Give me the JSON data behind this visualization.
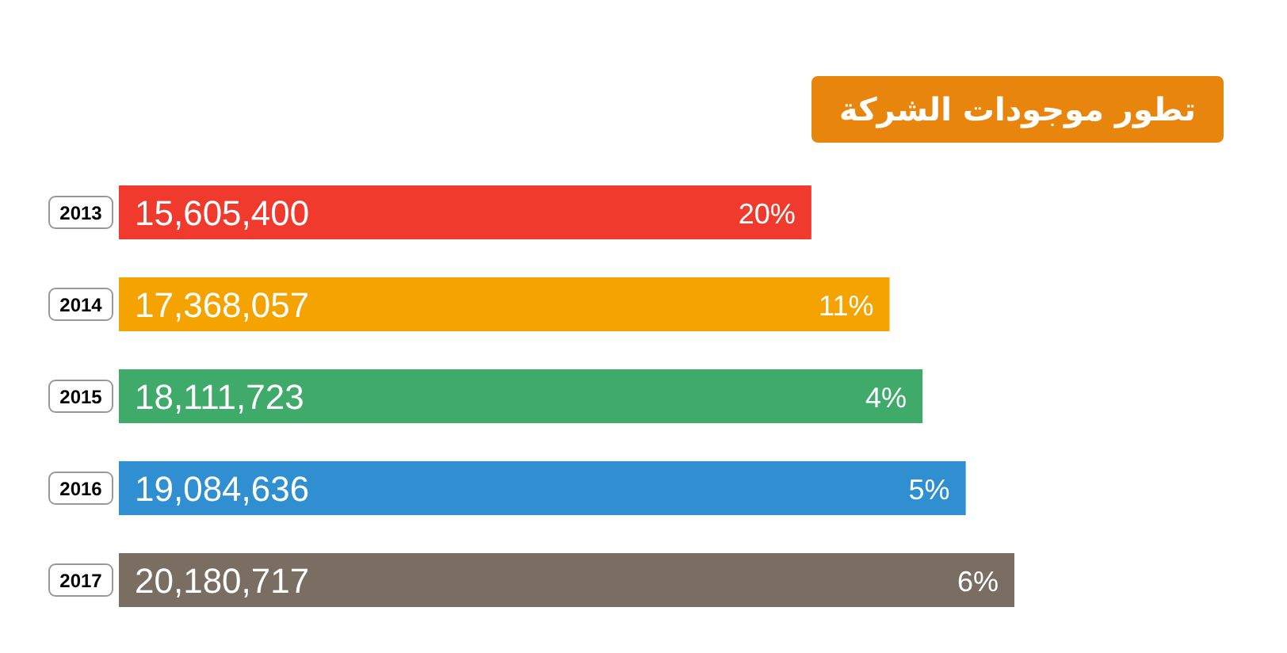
{
  "chart_data": {
    "type": "bar",
    "orientation": "horizontal",
    "title": "تطور موجودات الشركة",
    "categories": [
      "2013",
      "2014",
      "2015",
      "2016",
      "2017"
    ],
    "values": [
      15605400,
      17368057,
      18111723,
      19084636,
      20180717
    ],
    "value_labels": [
      "15,605,400",
      "17,368,057",
      "18,111,723",
      "19,084,636",
      "20,180,717"
    ],
    "colors": [
      "#f03a2e",
      "#f5a300",
      "#3faa6a",
      "#2f8fd0",
      "#7a6e62"
    ],
    "annotations": [
      "20%",
      "11%",
      "4%",
      "5%",
      "6%"
    ],
    "tick_labels": "y"
  }
}
